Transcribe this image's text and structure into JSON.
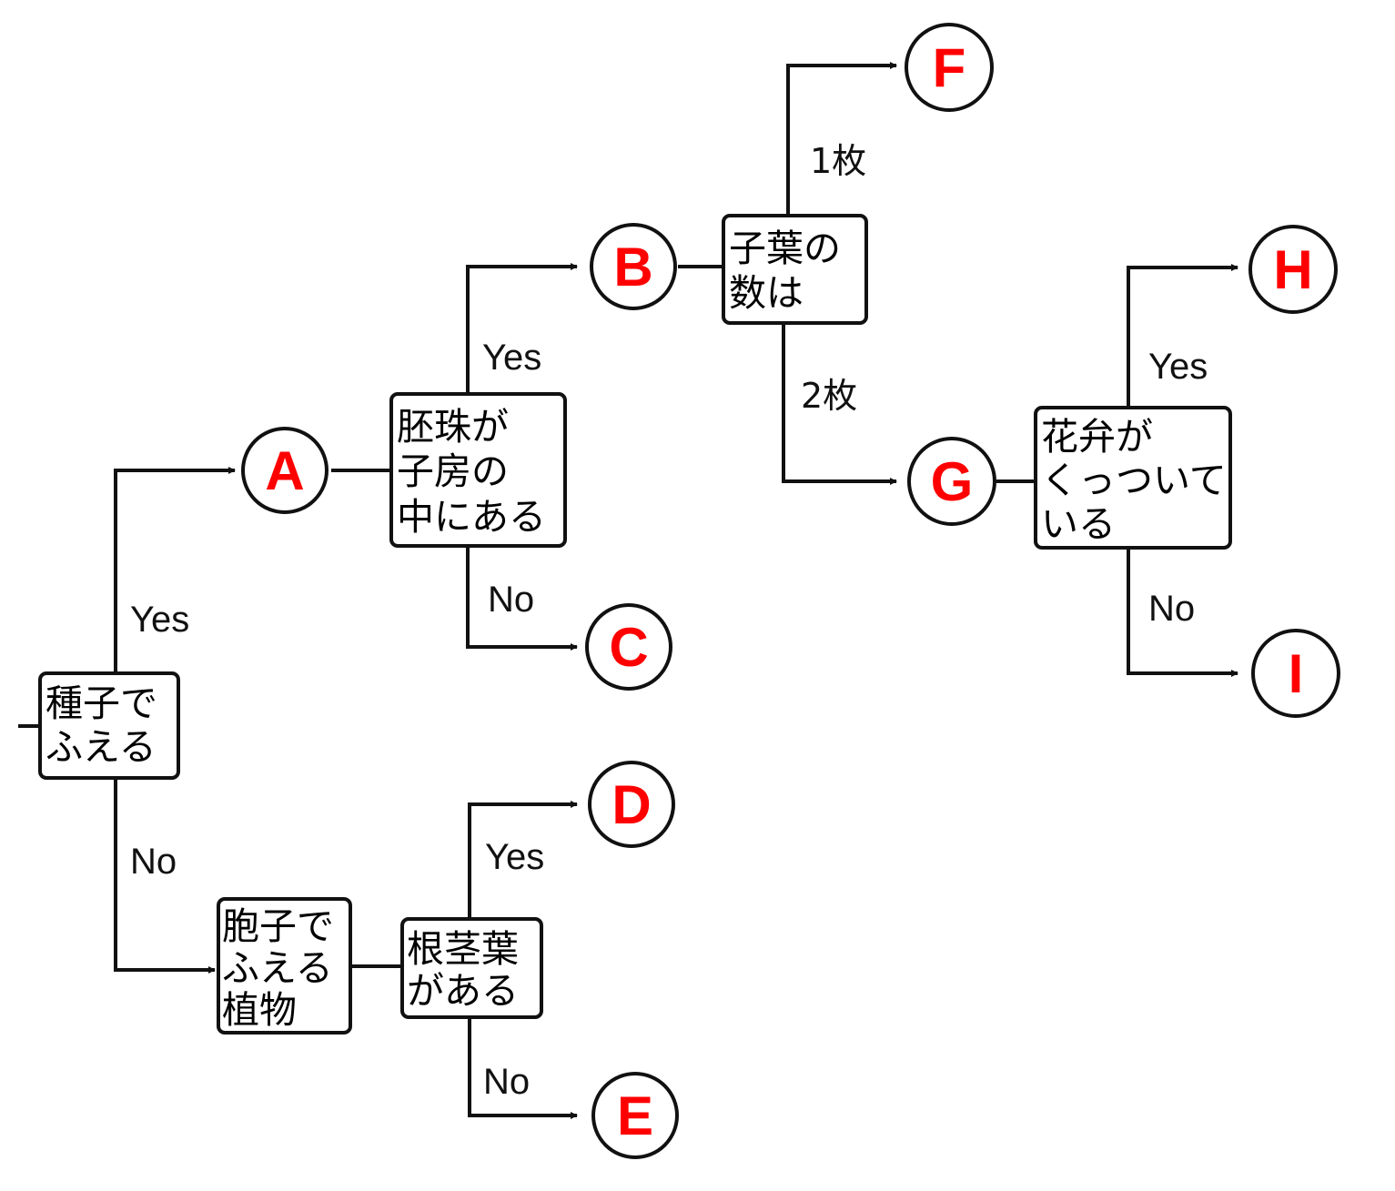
{
  "colors": {
    "node_letter": "#ff0000",
    "line": "#111111"
  },
  "nodes": {
    "A": "A",
    "B": "B",
    "C": "C",
    "D": "D",
    "E": "E",
    "F": "F",
    "G": "G",
    "H": "H",
    "I": "I"
  },
  "questions": {
    "seed": [
      "種子で",
      "ふえる"
    ],
    "spore": [
      "胞子で",
      "ふえる",
      "植物"
    ],
    "ovule": [
      "胚珠が",
      "子房の",
      "中にある"
    ],
    "rootstem": [
      "根茎葉",
      "がある"
    ],
    "cotyledon": [
      "子葉の",
      "数は"
    ],
    "petal": [
      "花弁が",
      "くっついて",
      "いる"
    ]
  },
  "labels": {
    "yes": "Yes",
    "no": "No",
    "one_leaf": "1枚",
    "two_leaves": "2枚"
  }
}
